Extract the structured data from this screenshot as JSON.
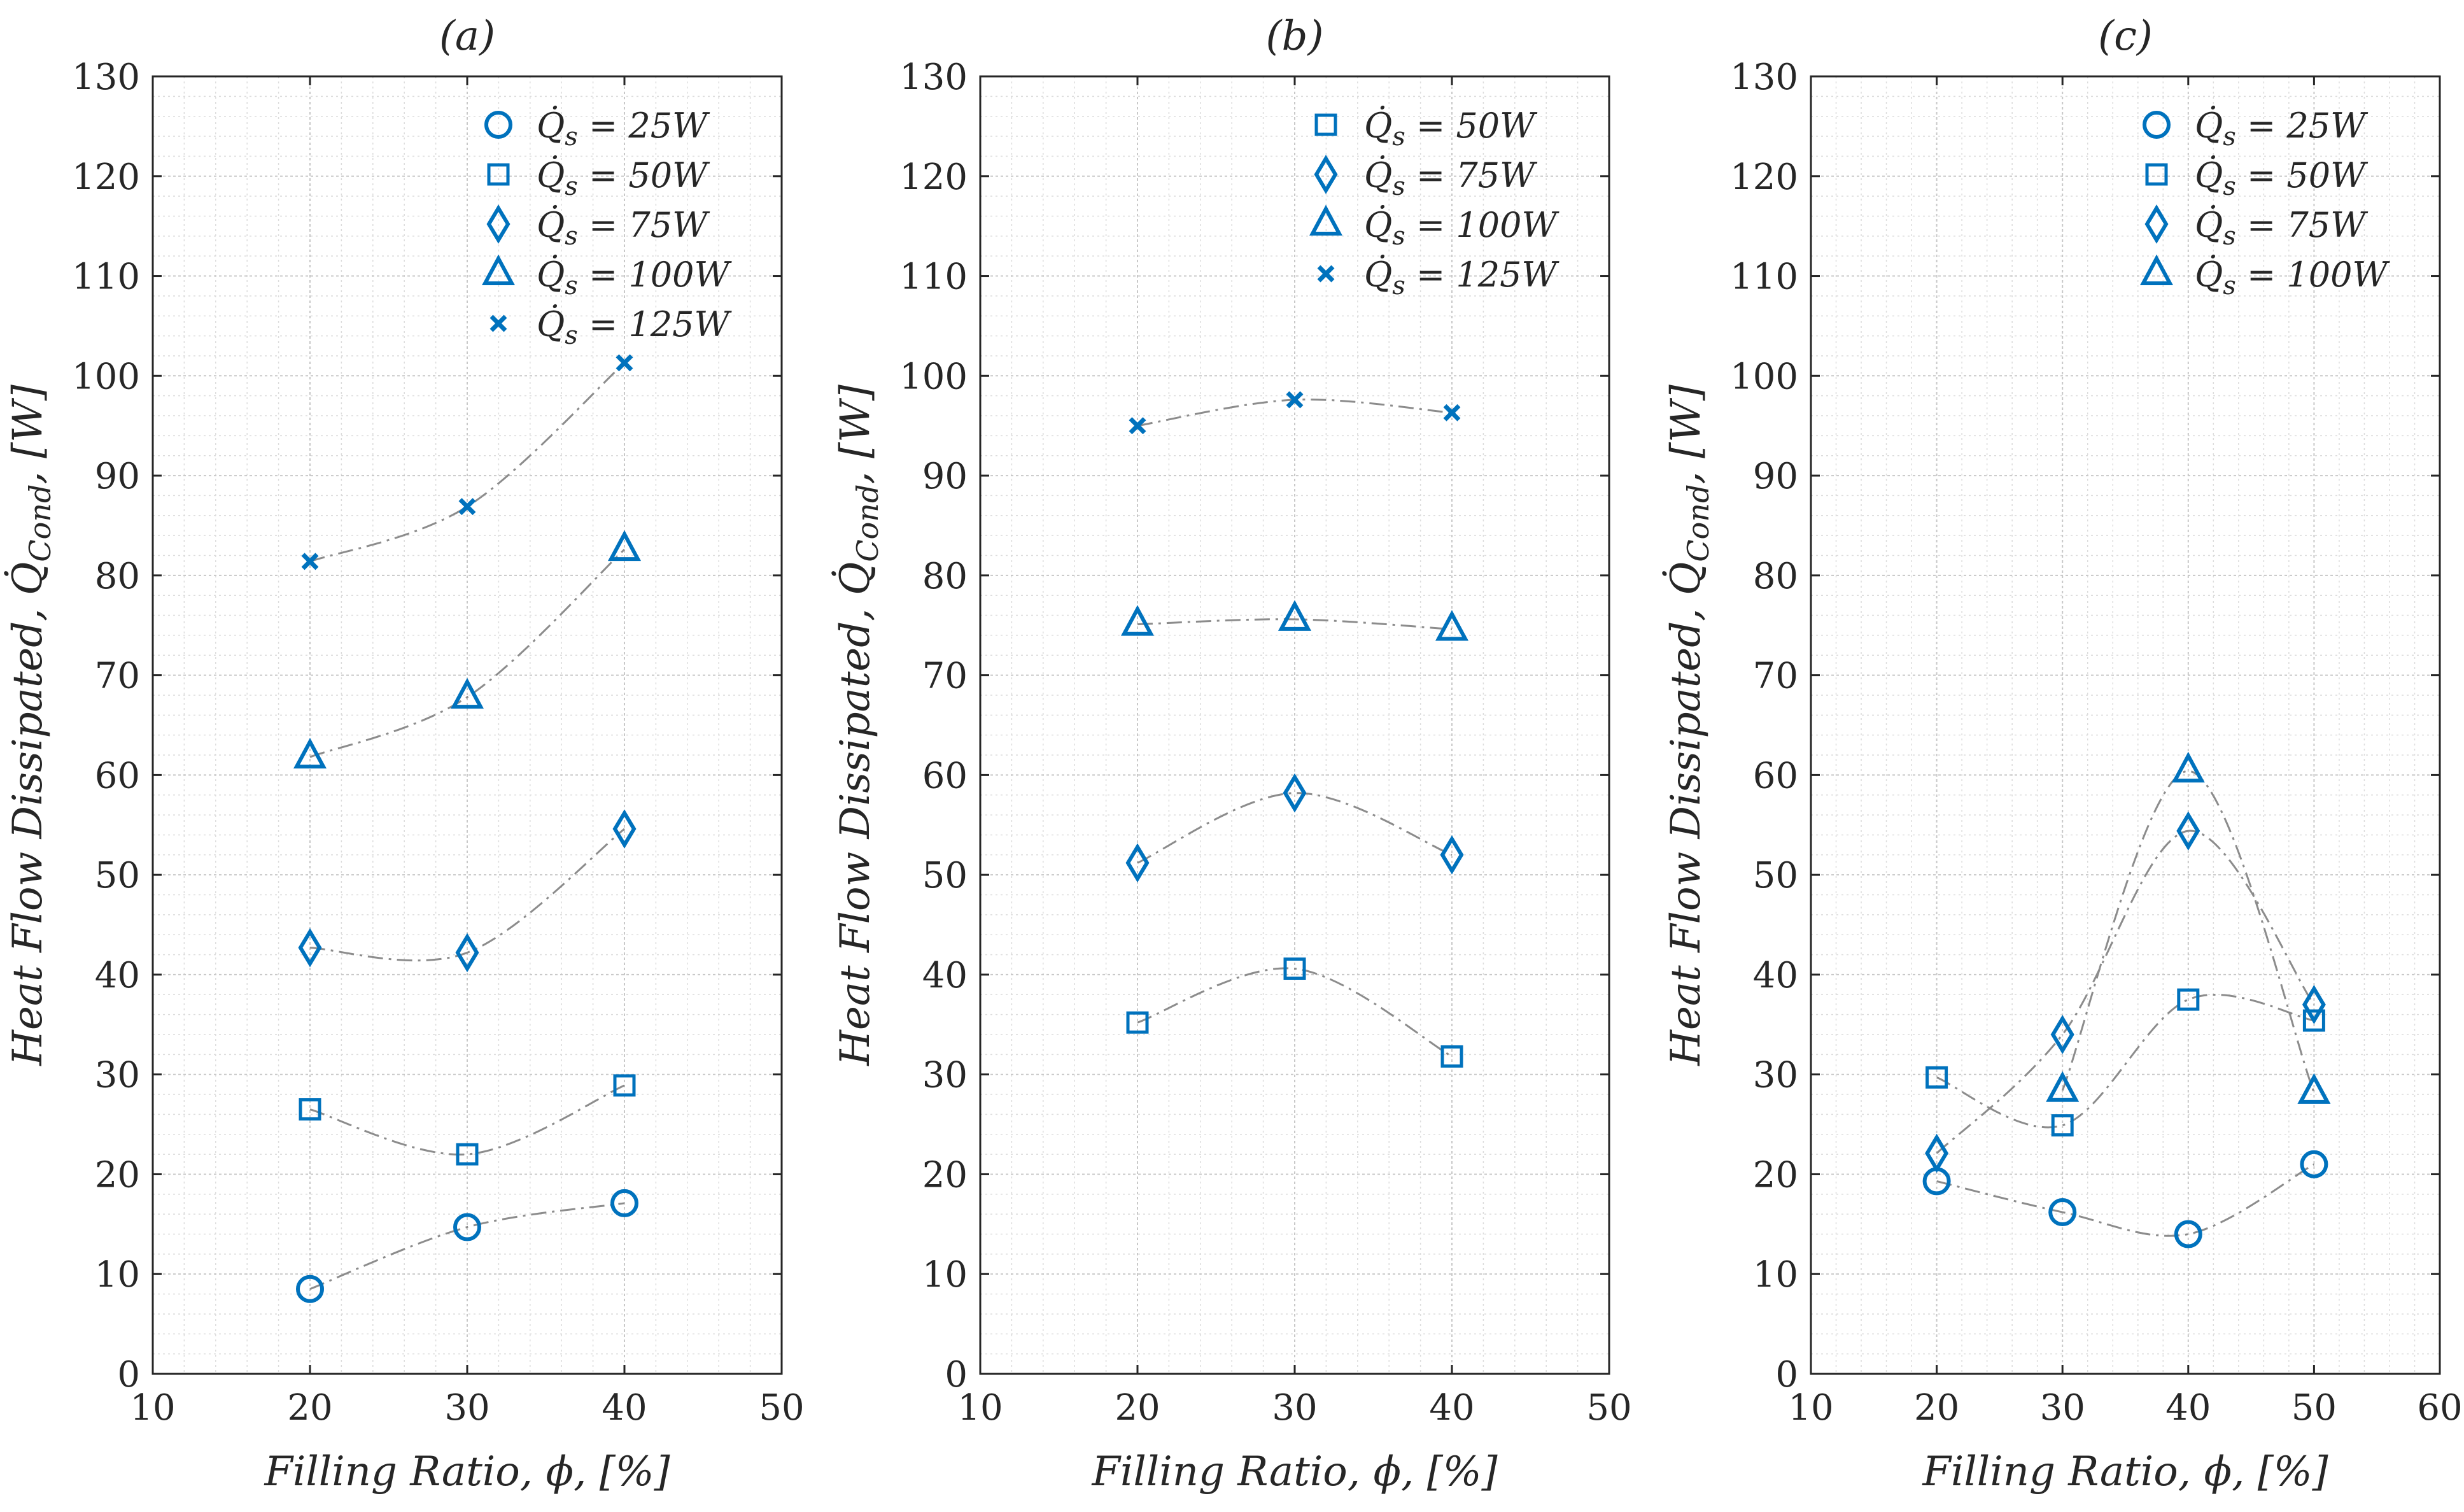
{
  "colors": {
    "marker": "#0072BD",
    "fit_line": "#8c8c8c",
    "grid": "#dcdcdc",
    "axis": "#262626"
  },
  "chart_data": [
    {
      "type": "scatter",
      "title": "(a)",
      "xlabel": "Filling Ratio, ϕ, [%]",
      "ylabel": "Heat Flow Dissipated, Q̇_Cond, [W]",
      "xlim": [
        10,
        50
      ],
      "ylim": [
        0,
        130
      ],
      "xticks": [
        10,
        20,
        30,
        40,
        50
      ],
      "yticks": [
        0,
        10,
        20,
        30,
        40,
        50,
        60,
        70,
        80,
        90,
        100,
        110,
        120,
        130
      ],
      "grid": true,
      "minor_grid": true,
      "legend_position": "top-right",
      "series": [
        {
          "name": "Q̇s = 25W",
          "marker": "circle",
          "x": [
            20,
            30,
            40
          ],
          "values": [
            8.5,
            14.7,
            17.1
          ]
        },
        {
          "name": "Q̇s = 50W",
          "marker": "square",
          "x": [
            20,
            30,
            40
          ],
          "values": [
            26.5,
            22.0,
            28.9
          ]
        },
        {
          "name": "Q̇s = 75W",
          "marker": "diamond",
          "x": [
            20,
            30,
            40
          ],
          "values": [
            42.7,
            42.2,
            54.6
          ]
        },
        {
          "name": "Q̇s = 100W",
          "marker": "triangle",
          "x": [
            20,
            30,
            40
          ],
          "values": [
            61.8,
            67.8,
            82.6
          ]
        },
        {
          "name": "Q̇s = 125W",
          "marker": "x",
          "x": [
            20,
            30,
            40
          ],
          "values": [
            81.4,
            86.9,
            101.3
          ]
        }
      ]
    },
    {
      "type": "scatter",
      "title": "(b)",
      "xlabel": "Filling Ratio, ϕ, [%]",
      "ylabel": "Heat Flow Dissipated, Q̇_Cond, [W]",
      "xlim": [
        10,
        50
      ],
      "ylim": [
        0,
        130
      ],
      "xticks": [
        10,
        20,
        30,
        40,
        50
      ],
      "yticks": [
        0,
        10,
        20,
        30,
        40,
        50,
        60,
        70,
        80,
        90,
        100,
        110,
        120,
        130
      ],
      "grid": true,
      "minor_grid": true,
      "legend_position": "top-right",
      "series": [
        {
          "name": "Q̇s = 50W",
          "marker": "square",
          "x": [
            20,
            30,
            40
          ],
          "values": [
            35.2,
            40.6,
            31.8
          ]
        },
        {
          "name": "Q̇s = 75W",
          "marker": "diamond",
          "x": [
            20,
            30,
            40
          ],
          "values": [
            51.2,
            58.2,
            52.0
          ]
        },
        {
          "name": "Q̇s = 100W",
          "marker": "triangle",
          "x": [
            20,
            30,
            40
          ],
          "values": [
            75.1,
            75.6,
            74.6
          ]
        },
        {
          "name": "Q̇s = 125W",
          "marker": "x",
          "x": [
            20,
            30,
            40
          ],
          "values": [
            95.0,
            97.6,
            96.3
          ]
        }
      ]
    },
    {
      "type": "scatter",
      "title": "(c)",
      "xlabel": "Filling Ratio, ϕ, [%]",
      "ylabel": "Heat Flow Dissipated, Q̇_Cond, [W]",
      "xlim": [
        10,
        60
      ],
      "ylim": [
        0,
        130
      ],
      "xticks": [
        10,
        20,
        30,
        40,
        50,
        60
      ],
      "yticks": [
        0,
        10,
        20,
        30,
        40,
        50,
        60,
        70,
        80,
        90,
        100,
        110,
        120,
        130
      ],
      "grid": true,
      "minor_grid": true,
      "legend_position": "top-right",
      "series": [
        {
          "name": "Q̇s = 25W",
          "marker": "circle",
          "x": [
            20,
            30,
            40,
            50
          ],
          "values": [
            19.3,
            16.2,
            14.0,
            21.0
          ]
        },
        {
          "name": "Q̇s = 50W",
          "marker": "square",
          "x": [
            20,
            30,
            40,
            50
          ],
          "values": [
            29.7,
            24.9,
            37.5,
            35.4
          ]
        },
        {
          "name": "Q̇s = 75W",
          "marker": "diamond",
          "x": [
            20,
            30,
            40,
            50
          ],
          "values": [
            22.1,
            34.0,
            54.4,
            37.0
          ]
        },
        {
          "name": "Q̇s = 100W",
          "marker": "triangle",
          "x": [
            20,
            30,
            40,
            50
          ],
          "values": [
            null,
            28.4,
            60.4,
            28.2
          ]
        }
      ]
    }
  ]
}
